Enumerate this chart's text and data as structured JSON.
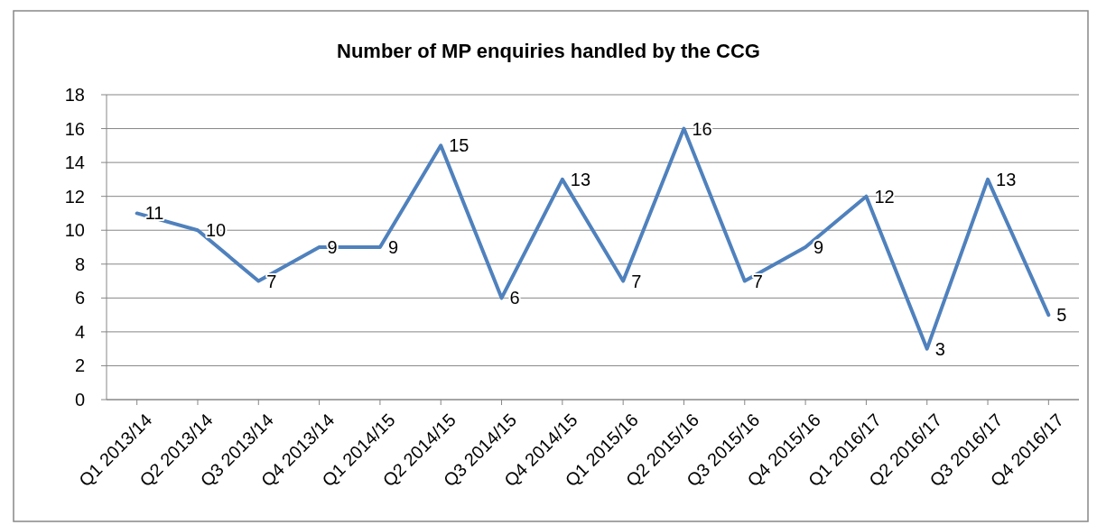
{
  "chart_data": {
    "type": "line",
    "title": "Number of MP enquiries handled by the CCG",
    "categories": [
      "Q1 2013/14",
      "Q2 2013/14",
      "Q3 2013/14",
      "Q4 2013/14",
      "Q1 2014/15",
      "Q2 2014/15",
      "Q3 2014/15",
      "Q4 2014/15",
      "Q1 2015/16",
      "Q2 2015/16",
      "Q3 2015/16",
      "Q4 2015/16",
      "Q1 2016/17",
      "Q2 2016/17",
      "Q3 2016/17",
      "Q4 2016/17"
    ],
    "series": [
      {
        "color": "#4f81bd",
        "values": [
          11,
          10,
          7,
          9,
          9,
          15,
          6,
          13,
          7,
          16,
          7,
          9,
          12,
          3,
          13,
          5
        ]
      }
    ],
    "ylim": [
      0,
      18
    ],
    "yticks": [
      0,
      2,
      4,
      6,
      8,
      10,
      12,
      14,
      16,
      18
    ],
    "grid": "y",
    "data_labels": true,
    "marker": "none",
    "line_style": "solid"
  }
}
